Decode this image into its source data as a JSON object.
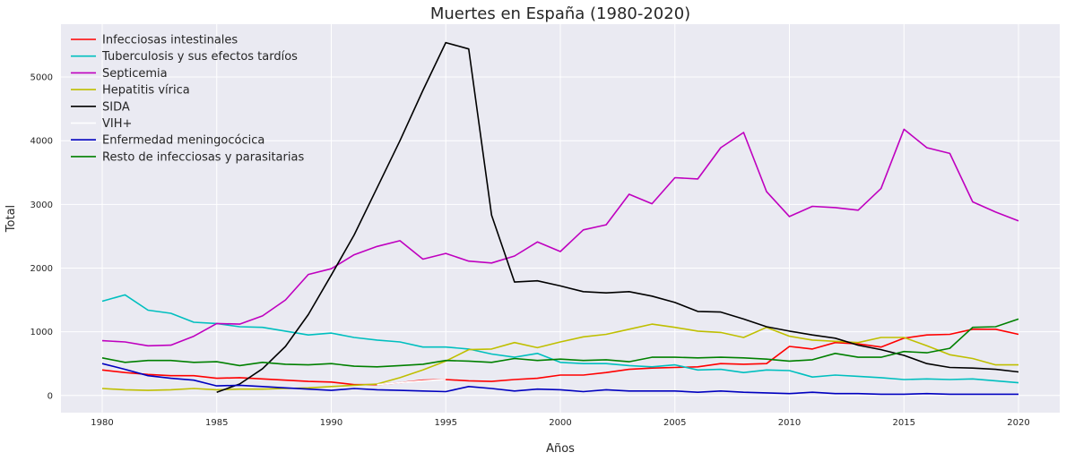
{
  "chart_data": {
    "type": "line",
    "title": "Muertes en España (1980-2020)",
    "xlabel": "Años",
    "ylabel": "Total",
    "xlim": [
      1978.2,
      2021.8
    ],
    "ylim": [
      -270,
      5830
    ],
    "xticks": [
      "1980",
      "1985",
      "1990",
      "1995",
      "2000",
      "2005",
      "2010",
      "2015",
      "2020"
    ],
    "yticks": [
      "0",
      "1000",
      "2000",
      "3000",
      "4000",
      "5000"
    ],
    "grid": true,
    "legend_position": "upper-left",
    "x": [
      1980,
      1981,
      1982,
      1983,
      1984,
      1985,
      1986,
      1987,
      1988,
      1989,
      1990,
      1991,
      1992,
      1993,
      1994,
      1995,
      1996,
      1997,
      1998,
      1999,
      2000,
      2001,
      2002,
      2003,
      2004,
      2005,
      2006,
      2007,
      2008,
      2009,
      2010,
      2011,
      2012,
      2013,
      2014,
      2015,
      2016,
      2017,
      2018,
      2019,
      2020
    ],
    "series": [
      {
        "name": "Infecciosas intestinales",
        "color": "#ff0000",
        "values": [
          400,
          360,
          330,
          310,
          310,
          270,
          280,
          260,
          240,
          220,
          210,
          170,
          170,
          200,
          240,
          250,
          230,
          220,
          250,
          270,
          320,
          320,
          360,
          410,
          430,
          440,
          450,
          500,
          490,
          500,
          770,
          730,
          830,
          810,
          760,
          900,
          950,
          960,
          1040,
          1040,
          960
        ]
      },
      {
        "name": "Tuberculosis y sus efectos tardíos",
        "color": "#00bfbf",
        "values": [
          1480,
          1580,
          1340,
          1290,
          1150,
          1130,
          1080,
          1070,
          1010,
          950,
          980,
          910,
          870,
          840,
          760,
          760,
          730,
          650,
          600,
          660,
          520,
          500,
          500,
          470,
          450,
          480,
          400,
          410,
          360,
          400,
          390,
          290,
          320,
          300,
          280,
          250,
          260,
          250,
          260,
          230,
          200
        ]
      },
      {
        "name": "Septicemia",
        "color": "#bf00bf",
        "values": [
          860,
          840,
          780,
          790,
          930,
          1130,
          1120,
          1250,
          1500,
          1900,
          1990,
          2210,
          2340,
          2430,
          2140,
          2230,
          2110,
          2080,
          2190,
          2410,
          2260,
          2600,
          2680,
          3160,
          3010,
          3420,
          3400,
          3890,
          4130,
          3200,
          2810,
          2970,
          2950,
          2910,
          3250,
          4180,
          3890,
          3800,
          3040,
          2880,
          2740
        ]
      },
      {
        "name": "Hepatitis vírica",
        "color": "#bfbf00",
        "values": [
          110,
          90,
          80,
          90,
          110,
          90,
          100,
          100,
          110,
          120,
          140,
          160,
          180,
          280,
          400,
          540,
          720,
          730,
          830,
          750,
          840,
          920,
          960,
          1040,
          1120,
          1070,
          1010,
          990,
          910,
          1070,
          930,
          870,
          850,
          830,
          910,
          910,
          780,
          640,
          580,
          480,
          480
        ]
      },
      {
        "name": "SIDA",
        "color": "#000000",
        "values": [
          null,
          null,
          null,
          null,
          null,
          50,
          180,
          420,
          770,
          1270,
          1890,
          2520,
          3260,
          4000,
          4790,
          5540,
          5440,
          2830,
          1780,
          1800,
          1720,
          1630,
          1610,
          1630,
          1560,
          1460,
          1320,
          1310,
          1200,
          1080,
          1010,
          950,
          900,
          790,
          720,
          630,
          500,
          440,
          430,
          410,
          370
        ]
      },
      {
        "name": "VIH+",
        "color": "#ffffff",
        "values": [
          null,
          null,
          null,
          null,
          null,
          null,
          null,
          null,
          null,
          null,
          null,
          null,
          170,
          200,
          230,
          250,
          null,
          null,
          null,
          null,
          null,
          null,
          null,
          null,
          null,
          null,
          null,
          null,
          null,
          null,
          null,
          null,
          null,
          null,
          null,
          null,
          null,
          null,
          null,
          null,
          null
        ]
      },
      {
        "name": "Enfermedad meningocócica",
        "color": "#0000bf",
        "values": [
          500,
          410,
          310,
          270,
          240,
          150,
          160,
          140,
          120,
          100,
          80,
          110,
          90,
          80,
          70,
          60,
          140,
          110,
          70,
          100,
          90,
          60,
          90,
          70,
          70,
          70,
          50,
          70,
          50,
          40,
          30,
          50,
          30,
          30,
          20,
          20,
          30,
          20,
          20,
          20,
          20
        ]
      },
      {
        "name": "Resto de infecciosas y parasitarias",
        "color": "#008000",
        "values": [
          590,
          520,
          550,
          550,
          520,
          530,
          470,
          520,
          490,
          480,
          500,
          460,
          450,
          470,
          490,
          550,
          540,
          520,
          580,
          550,
          570,
          550,
          560,
          530,
          600,
          600,
          590,
          600,
          590,
          570,
          540,
          560,
          660,
          600,
          600,
          690,
          670,
          740,
          1070,
          1080,
          1200
        ]
      }
    ]
  }
}
